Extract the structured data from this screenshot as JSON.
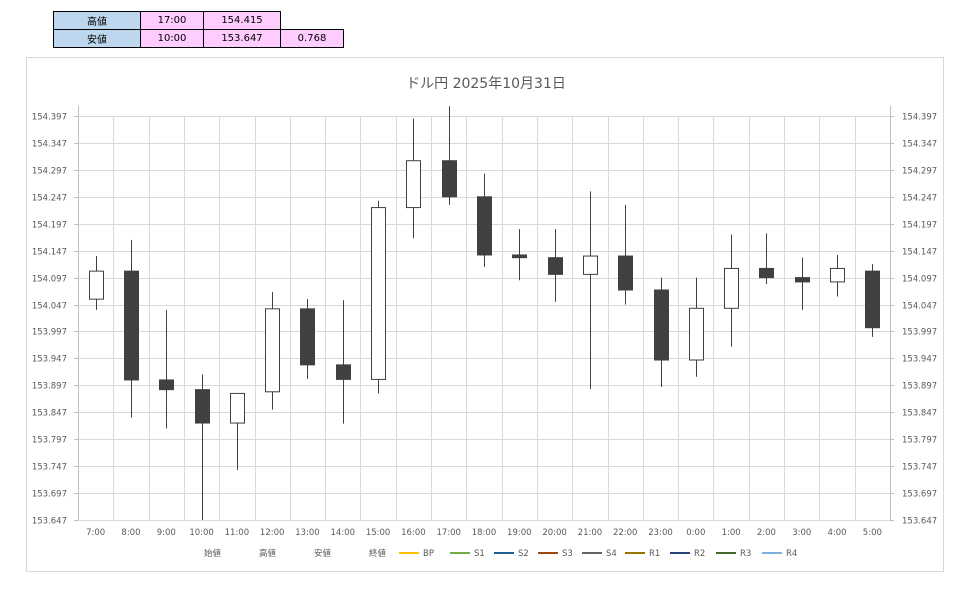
{
  "summary": {
    "high": {
      "label": "高値",
      "time": "17:00",
      "price": "154.415"
    },
    "low": {
      "label": "安値",
      "time": "10:00",
      "price": "153.647",
      "range": "0.768"
    }
  },
  "chart_data": {
    "type": "candlestick",
    "title": "ドル円  2025年10月31日",
    "categories": [
      "7:00",
      "8:00",
      "9:00",
      "10:00",
      "11:00",
      "12:00",
      "13:00",
      "14:00",
      "15:00",
      "16:00",
      "17:00",
      "18:00",
      "19:00",
      "20:00",
      "21:00",
      "22:00",
      "23:00",
      "0:00",
      "1:00",
      "2:00",
      "3:00",
      "4:00",
      "5:00"
    ],
    "ylim": [
      153.647,
      154.397
    ],
    "yticks": [
      "154.397",
      "154.347",
      "154.297",
      "154.247",
      "154.197",
      "154.147",
      "154.097",
      "154.047",
      "153.997",
      "153.947",
      "153.897",
      "153.847",
      "153.797",
      "153.747",
      "153.697",
      "153.647"
    ],
    "grid": true,
    "candles": [
      {
        "open": 154.057,
        "high": 154.137,
        "low": 154.037,
        "close": 154.109
      },
      {
        "open": 154.109,
        "high": 154.167,
        "low": 153.837,
        "close": 153.907
      },
      {
        "open": 153.907,
        "high": 154.037,
        "low": 153.817,
        "close": 153.889
      },
      {
        "open": 153.889,
        "high": 153.917,
        "low": 153.647,
        "close": 153.827
      },
      {
        "open": 153.827,
        "high": 153.882,
        "low": 153.74,
        "close": 153.882
      },
      {
        "open": 153.885,
        "high": 154.07,
        "low": 153.852,
        "close": 154.039
      },
      {
        "open": 154.039,
        "high": 154.057,
        "low": 153.909,
        "close": 153.935
      },
      {
        "open": 153.935,
        "high": 154.055,
        "low": 153.826,
        "close": 153.908
      },
      {
        "open": 153.908,
        "high": 154.24,
        "low": 153.882,
        "close": 154.227
      },
      {
        "open": 154.227,
        "high": 154.392,
        "low": 154.17,
        "close": 154.314
      },
      {
        "open": 154.314,
        "high": 154.415,
        "low": 154.232,
        "close": 154.247
      },
      {
        "open": 154.247,
        "high": 154.29,
        "low": 154.117,
        "close": 154.139
      },
      {
        "open": 154.139,
        "high": 154.187,
        "low": 154.092,
        "close": 154.134
      },
      {
        "open": 154.134,
        "high": 154.187,
        "low": 154.052,
        "close": 154.103
      },
      {
        "open": 154.103,
        "high": 154.257,
        "low": 153.89,
        "close": 154.137
      },
      {
        "open": 154.137,
        "high": 154.232,
        "low": 154.047,
        "close": 154.074
      },
      {
        "open": 154.074,
        "high": 154.097,
        "low": 153.894,
        "close": 153.944
      },
      {
        "open": 153.944,
        "high": 154.097,
        "low": 153.913,
        "close": 154.04
      },
      {
        "open": 154.04,
        "high": 154.177,
        "low": 153.969,
        "close": 154.114
      },
      {
        "open": 154.114,
        "high": 154.179,
        "low": 154.085,
        "close": 154.097
      },
      {
        "open": 154.097,
        "high": 154.134,
        "low": 154.037,
        "close": 154.089
      },
      {
        "open": 154.089,
        "high": 154.139,
        "low": 154.062,
        "close": 154.114
      },
      {
        "open": 154.109,
        "high": 154.122,
        "low": 153.987,
        "close": 154.004
      }
    ],
    "legend": {
      "placement": "bottom",
      "items": [
        {
          "name": "始値",
          "color": ""
        },
        {
          "name": "高値",
          "color": ""
        },
        {
          "name": "安値",
          "color": ""
        },
        {
          "name": "終値",
          "color": ""
        },
        {
          "name": "BP",
          "color": "#ffc000"
        },
        {
          "name": "S1",
          "color": "#70ad47"
        },
        {
          "name": "S2",
          "color": "#255e91"
        },
        {
          "name": "S3",
          "color": "#9e480e"
        },
        {
          "name": "S4",
          "color": "#636363"
        },
        {
          "name": "R1",
          "color": "#997300"
        },
        {
          "name": "R2",
          "color": "#264478"
        },
        {
          "name": "R3",
          "color": "#43682b"
        },
        {
          "name": "R4",
          "color": "#7cafdd"
        }
      ]
    },
    "colors": {
      "up_fill": "#ffffff",
      "down_fill": "#404040",
      "outline": "#404040",
      "grid": "#d9d9d9"
    }
  }
}
